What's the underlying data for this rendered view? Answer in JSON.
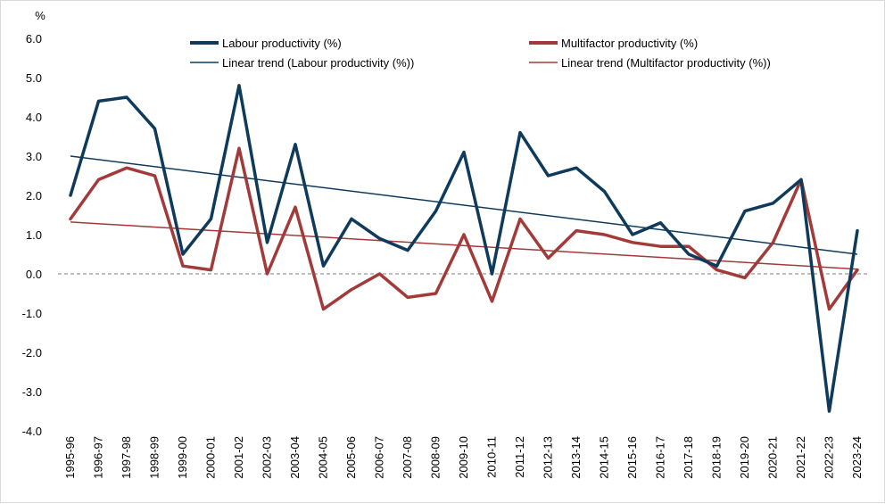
{
  "chart_data": {
    "type": "line",
    "ylabel": "%",
    "ylim": [
      -4,
      6
    ],
    "yticks": [
      "6.0",
      "5.0",
      "4.0",
      "3.0",
      "2.0",
      "1.0",
      "0.0",
      "-1.0",
      "-2.0",
      "-3.0",
      "-4.0"
    ],
    "ytick_values": [
      6,
      5,
      4,
      3,
      2,
      1,
      0,
      -1,
      -2,
      -3,
      -4
    ],
    "grid": false,
    "zero_line": "dashed",
    "legend": "top",
    "categories": [
      "1995-96",
      "1996-97",
      "1997-98",
      "1998-99",
      "1999-00",
      "2000-01",
      "2001-02",
      "2002-03",
      "2003-04",
      "2004-05",
      "2005-06",
      "2006-07",
      "2007-08",
      "2008-09",
      "2009-10",
      "2010-11",
      "2011-12",
      "2012-13",
      "2013-14",
      "2014-15",
      "2015-16",
      "2016-17",
      "2017-18",
      "2018-19",
      "2019-20",
      "2020-21",
      "2021-22",
      "2022-23",
      "2023-24"
    ],
    "series": [
      {
        "name": "Labour productivity (%)",
        "color": "#0e3a5c",
        "values": [
          2.0,
          4.4,
          4.5,
          3.7,
          0.5,
          1.4,
          4.8,
          0.8,
          3.3,
          0.2,
          1.4,
          0.9,
          0.6,
          1.6,
          3.1,
          0.0,
          3.6,
          2.5,
          2.7,
          2.1,
          1.0,
          1.3,
          0.5,
          0.2,
          1.6,
          1.8,
          2.4,
          -3.5,
          1.1
        ]
      },
      {
        "name": "Multifactor productivity (%)",
        "color": "#a33a3a",
        "values": [
          1.4,
          2.4,
          2.7,
          2.5,
          0.2,
          0.1,
          3.2,
          0.0,
          1.7,
          -0.9,
          -0.4,
          0.0,
          -0.6,
          -0.5,
          1.0,
          -0.7,
          1.4,
          0.4,
          1.1,
          1.0,
          0.8,
          0.7,
          0.7,
          0.1,
          -0.1,
          0.8,
          2.4,
          -0.9,
          0.1
        ]
      },
      {
        "name": "Linear trend (Labour productivity (%))",
        "color": "#0e3a5c",
        "trend_start": 3.0,
        "trend_end": 0.5
      },
      {
        "name": "Linear trend (Multifactor productivity (%))",
        "color": "#a33a3a",
        "trend_start": 1.32,
        "trend_end": 0.12
      }
    ]
  }
}
